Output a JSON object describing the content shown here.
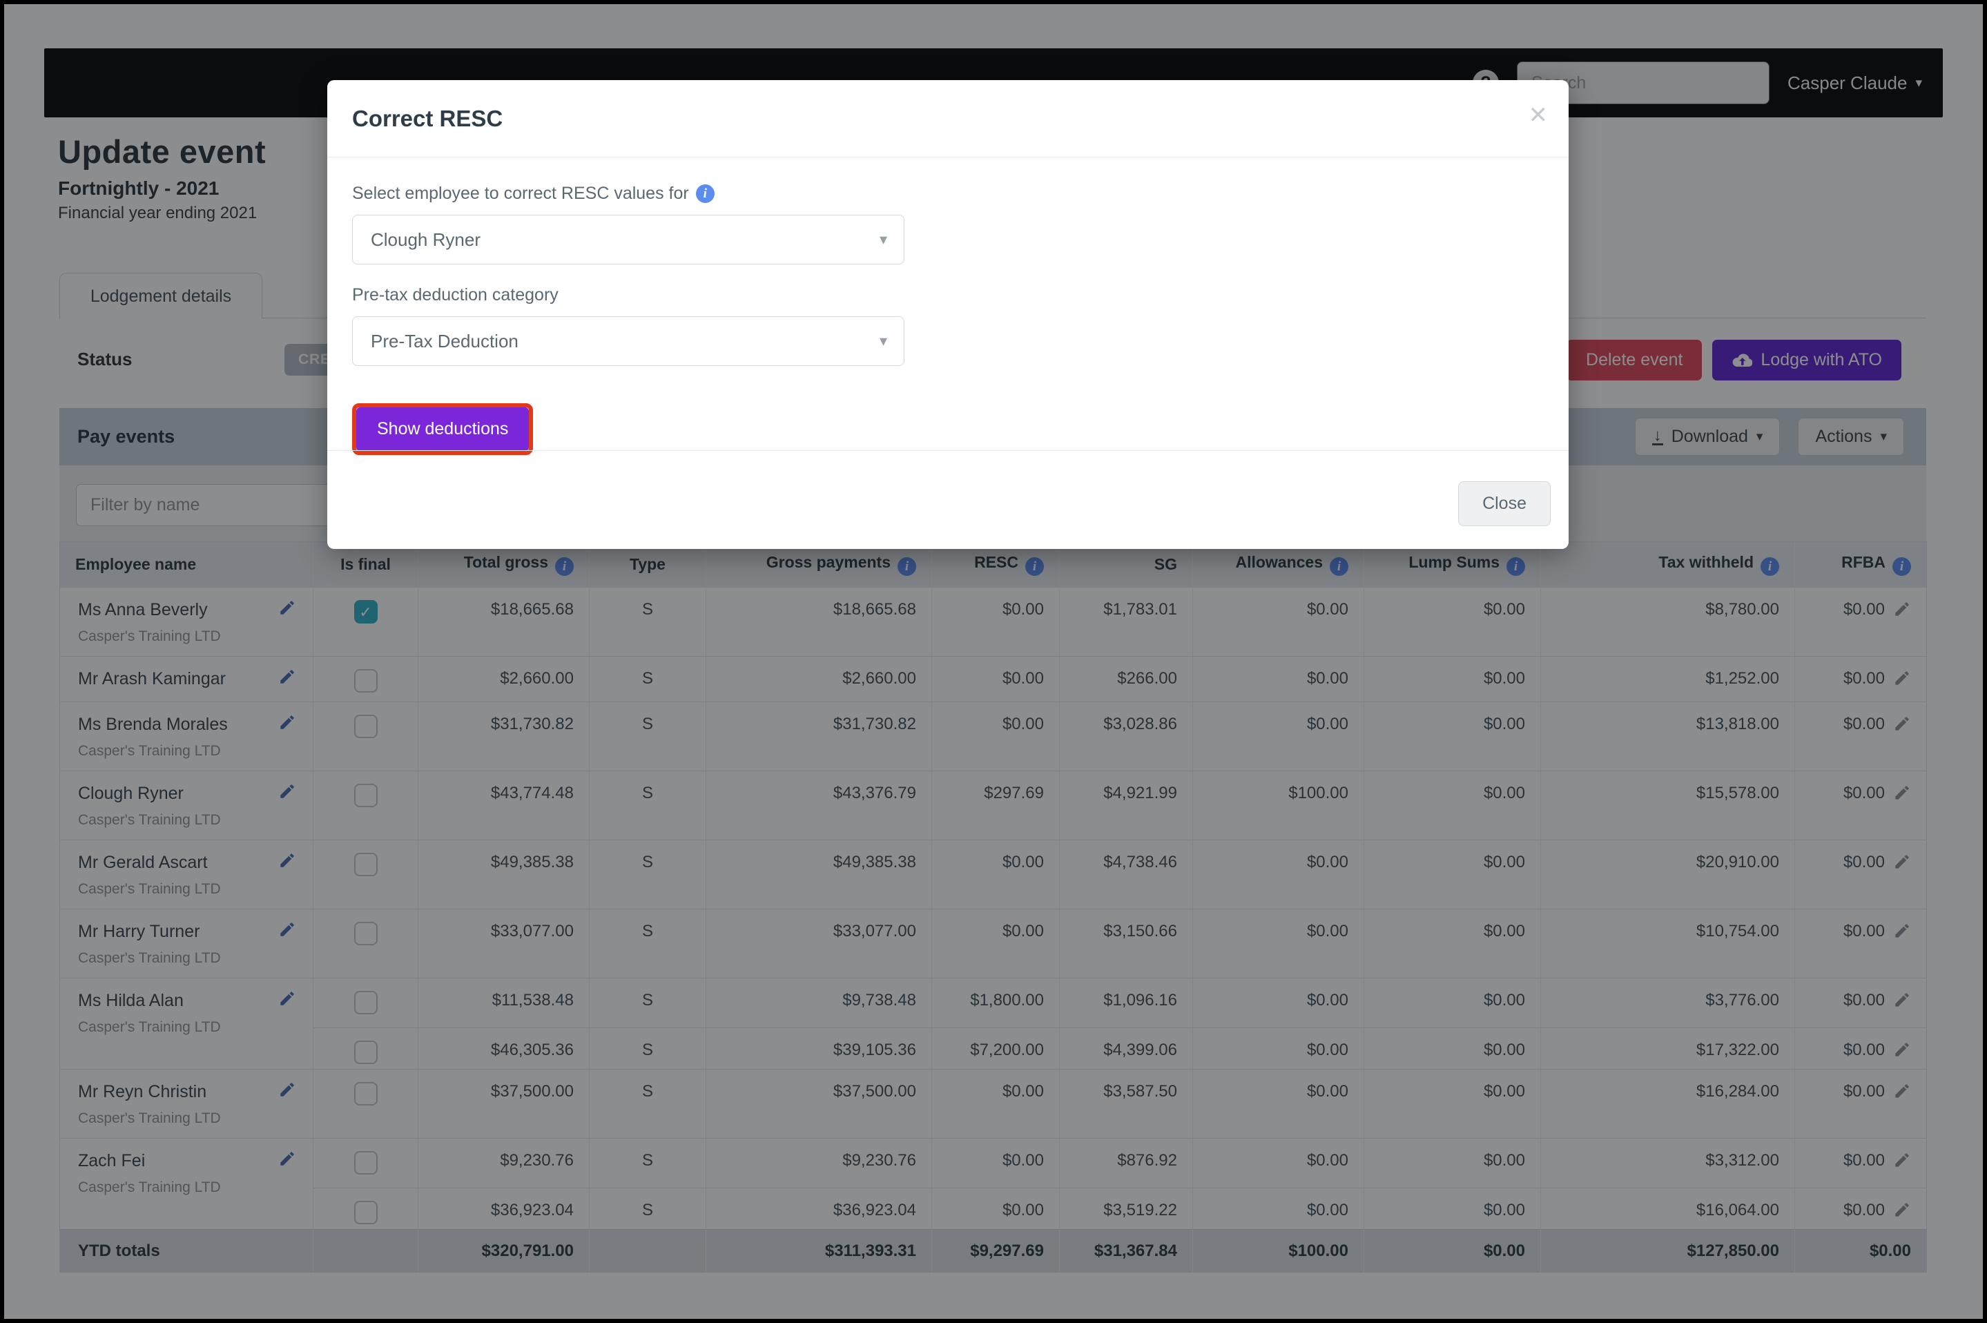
{
  "navbar": {
    "help_icon": "?",
    "search_placeholder": "Search",
    "user": "Casper Claude"
  },
  "heading": {
    "title": "Update event",
    "subtitle": "Fortnightly - 2021",
    "financial_year": "Financial year ending 2021"
  },
  "tabs": [
    {
      "label": "Lodgement details"
    }
  ],
  "status": {
    "label": "Status",
    "badge": "CREATED"
  },
  "page_actions": {
    "delete": "Delete event",
    "lodge": "Lodge with ATO"
  },
  "panel": {
    "title": "Pay events",
    "download": "Download",
    "actions": "Actions",
    "filter_placeholder": "Filter by name"
  },
  "table": {
    "columns": [
      {
        "key": "employee-name",
        "label": "Employee name",
        "info": false,
        "align": "left"
      },
      {
        "key": "is-final",
        "label": "Is final",
        "info": false,
        "align": "center"
      },
      {
        "key": "total-gross",
        "label": "Total gross",
        "info": true,
        "align": "right"
      },
      {
        "key": "type",
        "label": "Type",
        "info": false,
        "align": "center"
      },
      {
        "key": "gross-payments",
        "label": "Gross payments",
        "info": true,
        "align": "right"
      },
      {
        "key": "resc",
        "label": "RESC",
        "info": true,
        "align": "right"
      },
      {
        "key": "sg",
        "label": "SG",
        "info": false,
        "align": "right"
      },
      {
        "key": "allowances",
        "label": "Allowances",
        "info": true,
        "align": "right"
      },
      {
        "key": "lump-sums",
        "label": "Lump Sums",
        "info": true,
        "align": "right"
      },
      {
        "key": "tax-withheld",
        "label": "Tax withheld",
        "info": true,
        "align": "right"
      },
      {
        "key": "rfba",
        "label": "RFBA",
        "info": true,
        "align": "right"
      }
    ],
    "rows": [
      {
        "name": "Ms Anna Beverly",
        "company": "Casper's Training LTD",
        "row_type": "two-line",
        "checked": true,
        "values": [
          "$18,665.68",
          "S",
          "$18,665.68",
          "$0.00",
          "$1,783.01",
          "$0.00",
          "$0.00",
          "$8,780.00",
          "$0.00"
        ]
      },
      {
        "name": "Mr Arash Kamingar",
        "company": null,
        "row_type": "one-line",
        "checked": false,
        "values": [
          "$2,660.00",
          "S",
          "$2,660.00",
          "$0.00",
          "$266.00",
          "$0.00",
          "$0.00",
          "$1,252.00",
          "$0.00"
        ]
      },
      {
        "name": "Ms Brenda Morales",
        "company": "Casper's Training LTD",
        "row_type": "two-line",
        "checked": false,
        "values": [
          "$31,730.82",
          "S",
          "$31,730.82",
          "$0.00",
          "$3,028.86",
          "$0.00",
          "$0.00",
          "$13,818.00",
          "$0.00"
        ]
      },
      {
        "name": "Clough Ryner",
        "company": "Casper's Training LTD",
        "row_type": "two-line",
        "checked": false,
        "values": [
          "$43,774.48",
          "S",
          "$43,376.79",
          "$297.69",
          "$4,921.99",
          "$100.00",
          "$0.00",
          "$15,578.00",
          "$0.00"
        ]
      },
      {
        "name": "Mr Gerald Ascart",
        "company": "Casper's Training LTD",
        "row_type": "two-line",
        "checked": false,
        "values": [
          "$49,385.38",
          "S",
          "$49,385.38",
          "$0.00",
          "$4,738.46",
          "$0.00",
          "$0.00",
          "$20,910.00",
          "$0.00"
        ]
      },
      {
        "name": "Mr Harry Turner",
        "company": "Casper's Training LTD",
        "row_type": "two-line",
        "checked": false,
        "values": [
          "$33,077.00",
          "S",
          "$33,077.00",
          "$0.00",
          "$3,150.66",
          "$0.00",
          "$0.00",
          "$10,754.00",
          "$0.00"
        ]
      },
      {
        "name": "Ms Hilda Alan",
        "company": "Casper's Training LTD",
        "row_type": "merged-top",
        "merge_down": true,
        "checked": false,
        "values": [
          "$11,538.48",
          "S",
          "$9,738.48",
          "$1,800.00",
          "$1,096.16",
          "$0.00",
          "$0.00",
          "$3,776.00",
          "$0.00"
        ]
      },
      {
        "name": null,
        "sub_row": true,
        "row_type": "sub",
        "checked": false,
        "values": [
          "$46,305.36",
          "S",
          "$39,105.36",
          "$7,200.00",
          "$4,399.06",
          "$0.00",
          "$0.00",
          "$17,322.00",
          "$0.00"
        ]
      },
      {
        "name": "Mr Reyn Christin",
        "company": "Casper's Training LTD",
        "row_type": "two-line",
        "checked": false,
        "values": [
          "$37,500.00",
          "S",
          "$37,500.00",
          "$0.00",
          "$3,587.50",
          "$0.00",
          "$0.00",
          "$16,284.00",
          "$0.00"
        ]
      },
      {
        "name": "Zach Fei",
        "company": "Casper's Training LTD",
        "row_type": "merged-top",
        "merge_down": true,
        "checked": false,
        "values": [
          "$9,230.76",
          "S",
          "$9,230.76",
          "$0.00",
          "$876.92",
          "$0.00",
          "$0.00",
          "$3,312.00",
          "$0.00"
        ]
      },
      {
        "name": null,
        "sub_row": true,
        "row_type": "sub",
        "checked": false,
        "values": [
          "$36,923.04",
          "S",
          "$36,923.04",
          "$0.00",
          "$3,519.22",
          "$0.00",
          "$0.00",
          "$16,064.00",
          "$0.00"
        ]
      }
    ],
    "totals": {
      "label": "YTD totals",
      "values": [
        "$320,791.00",
        "",
        "$311,393.31",
        "$9,297.69",
        "$31,367.84",
        "$100.00",
        "$0.00",
        "$127,850.00",
        "$0.00"
      ]
    }
  },
  "modal": {
    "title": "Correct RESC",
    "close_icon": "✕",
    "employee_label": "Select employee to correct RESC values for",
    "employee_value": "Clough Ryner",
    "category_label": "Pre-tax deduction category",
    "category_value": "Pre-Tax Deduction",
    "show_button": "Show deductions",
    "close_button": "Close"
  },
  "colors": {
    "navbar_bg": "#0d0d0f",
    "accent_purple": "#7b26d9",
    "lodge_purple": "#5f28d2",
    "danger_red": "#dd4a5e",
    "annotation_red": "#e23a18",
    "checkbox_teal": "#35b2c8",
    "info_blue": "#5b8def",
    "panel_header_bg": "#c6d1dc",
    "table_header_bg": "#e4e9ee",
    "totals_bg": "#dce1e6"
  }
}
